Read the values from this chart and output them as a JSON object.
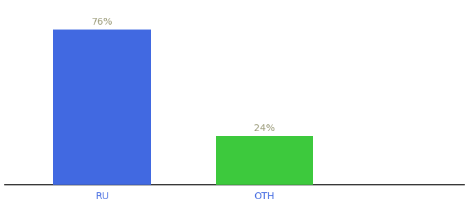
{
  "categories": [
    "RU",
    "OTH"
  ],
  "values": [
    76,
    24
  ],
  "bar_colors": [
    "#4169e1",
    "#3dc93d"
  ],
  "label_color": "#999977",
  "xlabel_color": "#4169e1",
  "background_color": "#ffffff",
  "ylim": [
    0,
    88
  ],
  "bar_width": 0.18,
  "annotation_fontsize": 10,
  "xlabel_fontsize": 10
}
